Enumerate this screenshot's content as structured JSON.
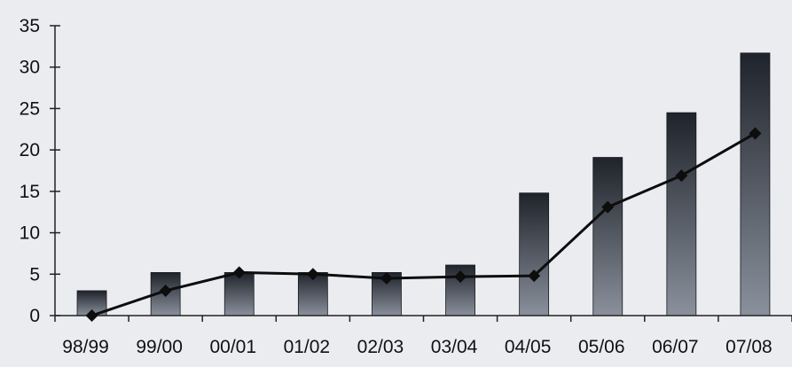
{
  "chart_data": {
    "type": "bar",
    "categories": [
      "98/99",
      "99/00",
      "00/01",
      "01/02",
      "02/03",
      "03/04",
      "04/05",
      "05/06",
      "06/07",
      "07/08"
    ],
    "series": [
      {
        "type": "bar",
        "values": [
          3,
          5.2,
          5.2,
          5.2,
          5.2,
          6.1,
          14.8,
          19.1,
          24.5,
          31.7
        ]
      },
      {
        "type": "line",
        "marker": "diamond",
        "values": [
          0,
          3,
          5.2,
          5,
          4.5,
          4.7,
          4.8,
          13.1,
          16.9,
          22
        ]
      }
    ],
    "title": "",
    "xlabel": "",
    "ylabel": "",
    "ylim": [
      0,
      35
    ],
    "yticks": [
      "0",
      "5",
      "10",
      "15",
      "20",
      "25",
      "30",
      "35"
    ],
    "grid": false,
    "legend": "none",
    "colors": {
      "bar_top": "#1f232b",
      "bar_bottom": "#8a919c",
      "line": "#0d0d0d",
      "axis": "#222222"
    }
  }
}
